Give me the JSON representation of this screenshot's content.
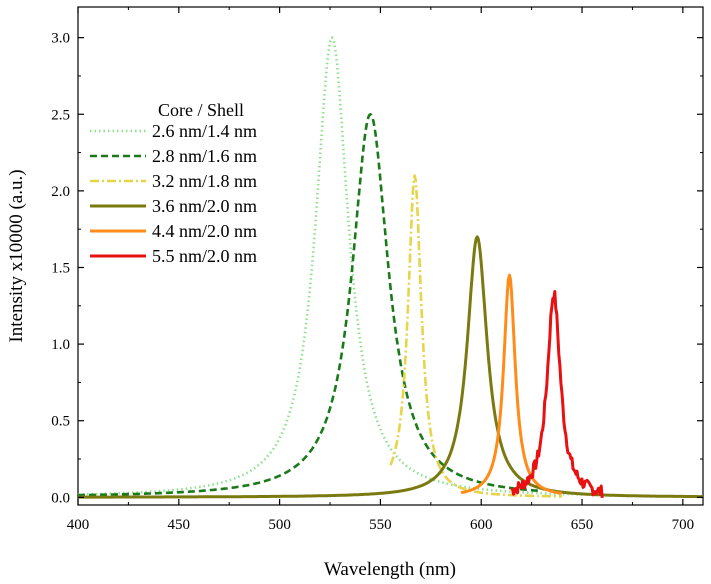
{
  "chart_data": {
    "type": "line",
    "title": "",
    "xlabel": "Wavelength (nm)",
    "ylabel": "Intensity x10000 (a.u.)",
    "xlim": [
      400,
      710
    ],
    "ylim": [
      -0.05,
      3.2
    ],
    "xticks": [
      400,
      450,
      500,
      550,
      600,
      650,
      700
    ],
    "xtick_labels": [
      "400",
      "450",
      "500",
      "550",
      "600",
      "650",
      "700"
    ],
    "yticks": [
      0.0,
      0.5,
      1.0,
      1.5,
      2.0,
      2.5,
      3.0
    ],
    "ytick_labels": [
      "0.0",
      "0.5",
      "1.0",
      "1.5",
      "2.0",
      "2.5",
      "3.0"
    ],
    "grid": false,
    "legend_title": "Core   / Shell",
    "legend_position": "upper-left",
    "series": [
      {
        "name": "2.6 nm/1.4 nm",
        "color": "#90e090",
        "style": "dotted",
        "peak_x": 526,
        "peak_y": 3.0,
        "fwhm": 20,
        "range": [
          400,
          650
        ],
        "noise": 0
      },
      {
        "name": "2.8 nm/1.6 nm",
        "color": "#1a7a1a",
        "style": "dashed",
        "peak_x": 545,
        "peak_y": 2.5,
        "fwhm": 22,
        "range": [
          400,
          630
        ],
        "noise": 0
      },
      {
        "name": "3.2 nm/1.8 nm",
        "color": "#e6d44a",
        "style": "dashdot",
        "peak_x": 567,
        "peak_y": 2.1,
        "fwhm": 8,
        "range": [
          555,
          640
        ],
        "noise": 0
      },
      {
        "name": "3.6 nm/2.0 nm",
        "color": "#7a7a10",
        "style": "solid",
        "peak_x": 598,
        "peak_y": 1.7,
        "fwhm": 12,
        "range": [
          400,
          710
        ],
        "noise": 0
      },
      {
        "name": "4.4 nm/2.0 nm",
        "color": "#ff8c1a",
        "style": "solid",
        "peak_x": 614,
        "peak_y": 1.45,
        "fwhm": 7,
        "range": [
          590,
          640
        ],
        "noise": 0
      },
      {
        "name": "5.5 nm/2.0 nm",
        "color": "#e81010",
        "style": "solid",
        "peak_x": 636,
        "peak_y": 1.33,
        "fwhm": 8,
        "range": [
          615,
          660
        ],
        "noise": 0.04
      }
    ]
  }
}
